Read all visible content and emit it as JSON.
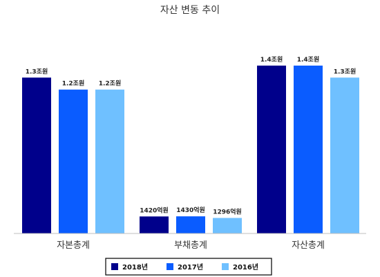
{
  "chart_data": {
    "type": "bar",
    "title": "자산 변동 추이",
    "categories": [
      "자본총계",
      "부채총계",
      "자산총계"
    ],
    "unit": "억원",
    "series": [
      {
        "name": "2018년",
        "color": "#00008B",
        "values": [
          13000,
          1420,
          14000
        ],
        "labels": [
          "1.3조원",
          "1420억원",
          "1.4조원"
        ]
      },
      {
        "name": "2017년",
        "color": "#0A5CFF",
        "values": [
          12000,
          1430,
          14000
        ],
        "labels": [
          "1.2조원",
          "1430억원",
          "1.4조원"
        ]
      },
      {
        "name": "2016년",
        "color": "#6FC0FF",
        "values": [
          12000,
          1296,
          13000
        ],
        "labels": [
          "1.2조원",
          "1296억원",
          "1.3조원"
        ]
      }
    ],
    "legend_position": "bottom",
    "grid": false
  }
}
